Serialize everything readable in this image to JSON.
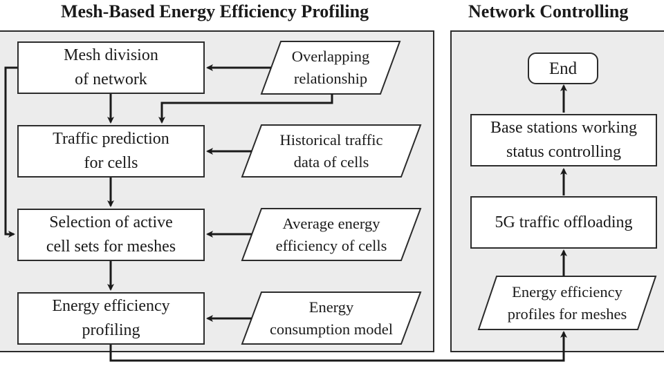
{
  "titles": {
    "left": "Mesh-Based Energy Efficiency Profiling",
    "right": "Network Controlling"
  },
  "process_steps": [
    {
      "line1": "Mesh division",
      "line2": "of network"
    },
    {
      "line1": "Traffic prediction",
      "line2": "for cells"
    },
    {
      "line1": "Selection of active",
      "line2": "cell sets for meshes"
    },
    {
      "line1": "Energy efficiency",
      "line2": "profiling"
    }
  ],
  "inputs": [
    {
      "line1": "Overlapping",
      "line2": "relationship"
    },
    {
      "line1": "Historical traffic",
      "line2": "data of cells"
    },
    {
      "line1": "Average energy",
      "line2": "efficiency of cells"
    },
    {
      "line1": "Energy",
      "line2": "consumption model"
    }
  ],
  "control": {
    "end": "End",
    "base_stations": {
      "line1": "Base stations working",
      "line2": "status controlling"
    },
    "offloading": "5G traffic offloading",
    "profiles": {
      "line1": "Energy efficiency",
      "line2": "profiles for meshes"
    }
  }
}
